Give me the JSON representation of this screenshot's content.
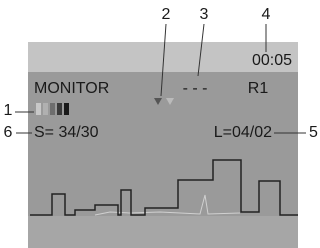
{
  "callouts": [
    "1",
    "2",
    "3",
    "4",
    "5",
    "6"
  ],
  "screen": {
    "time": "00:05",
    "mode": "MONITOR",
    "status": "- - -",
    "range": "R1",
    "s_value": "S= 34/30",
    "l_value": "L=04/02"
  }
}
